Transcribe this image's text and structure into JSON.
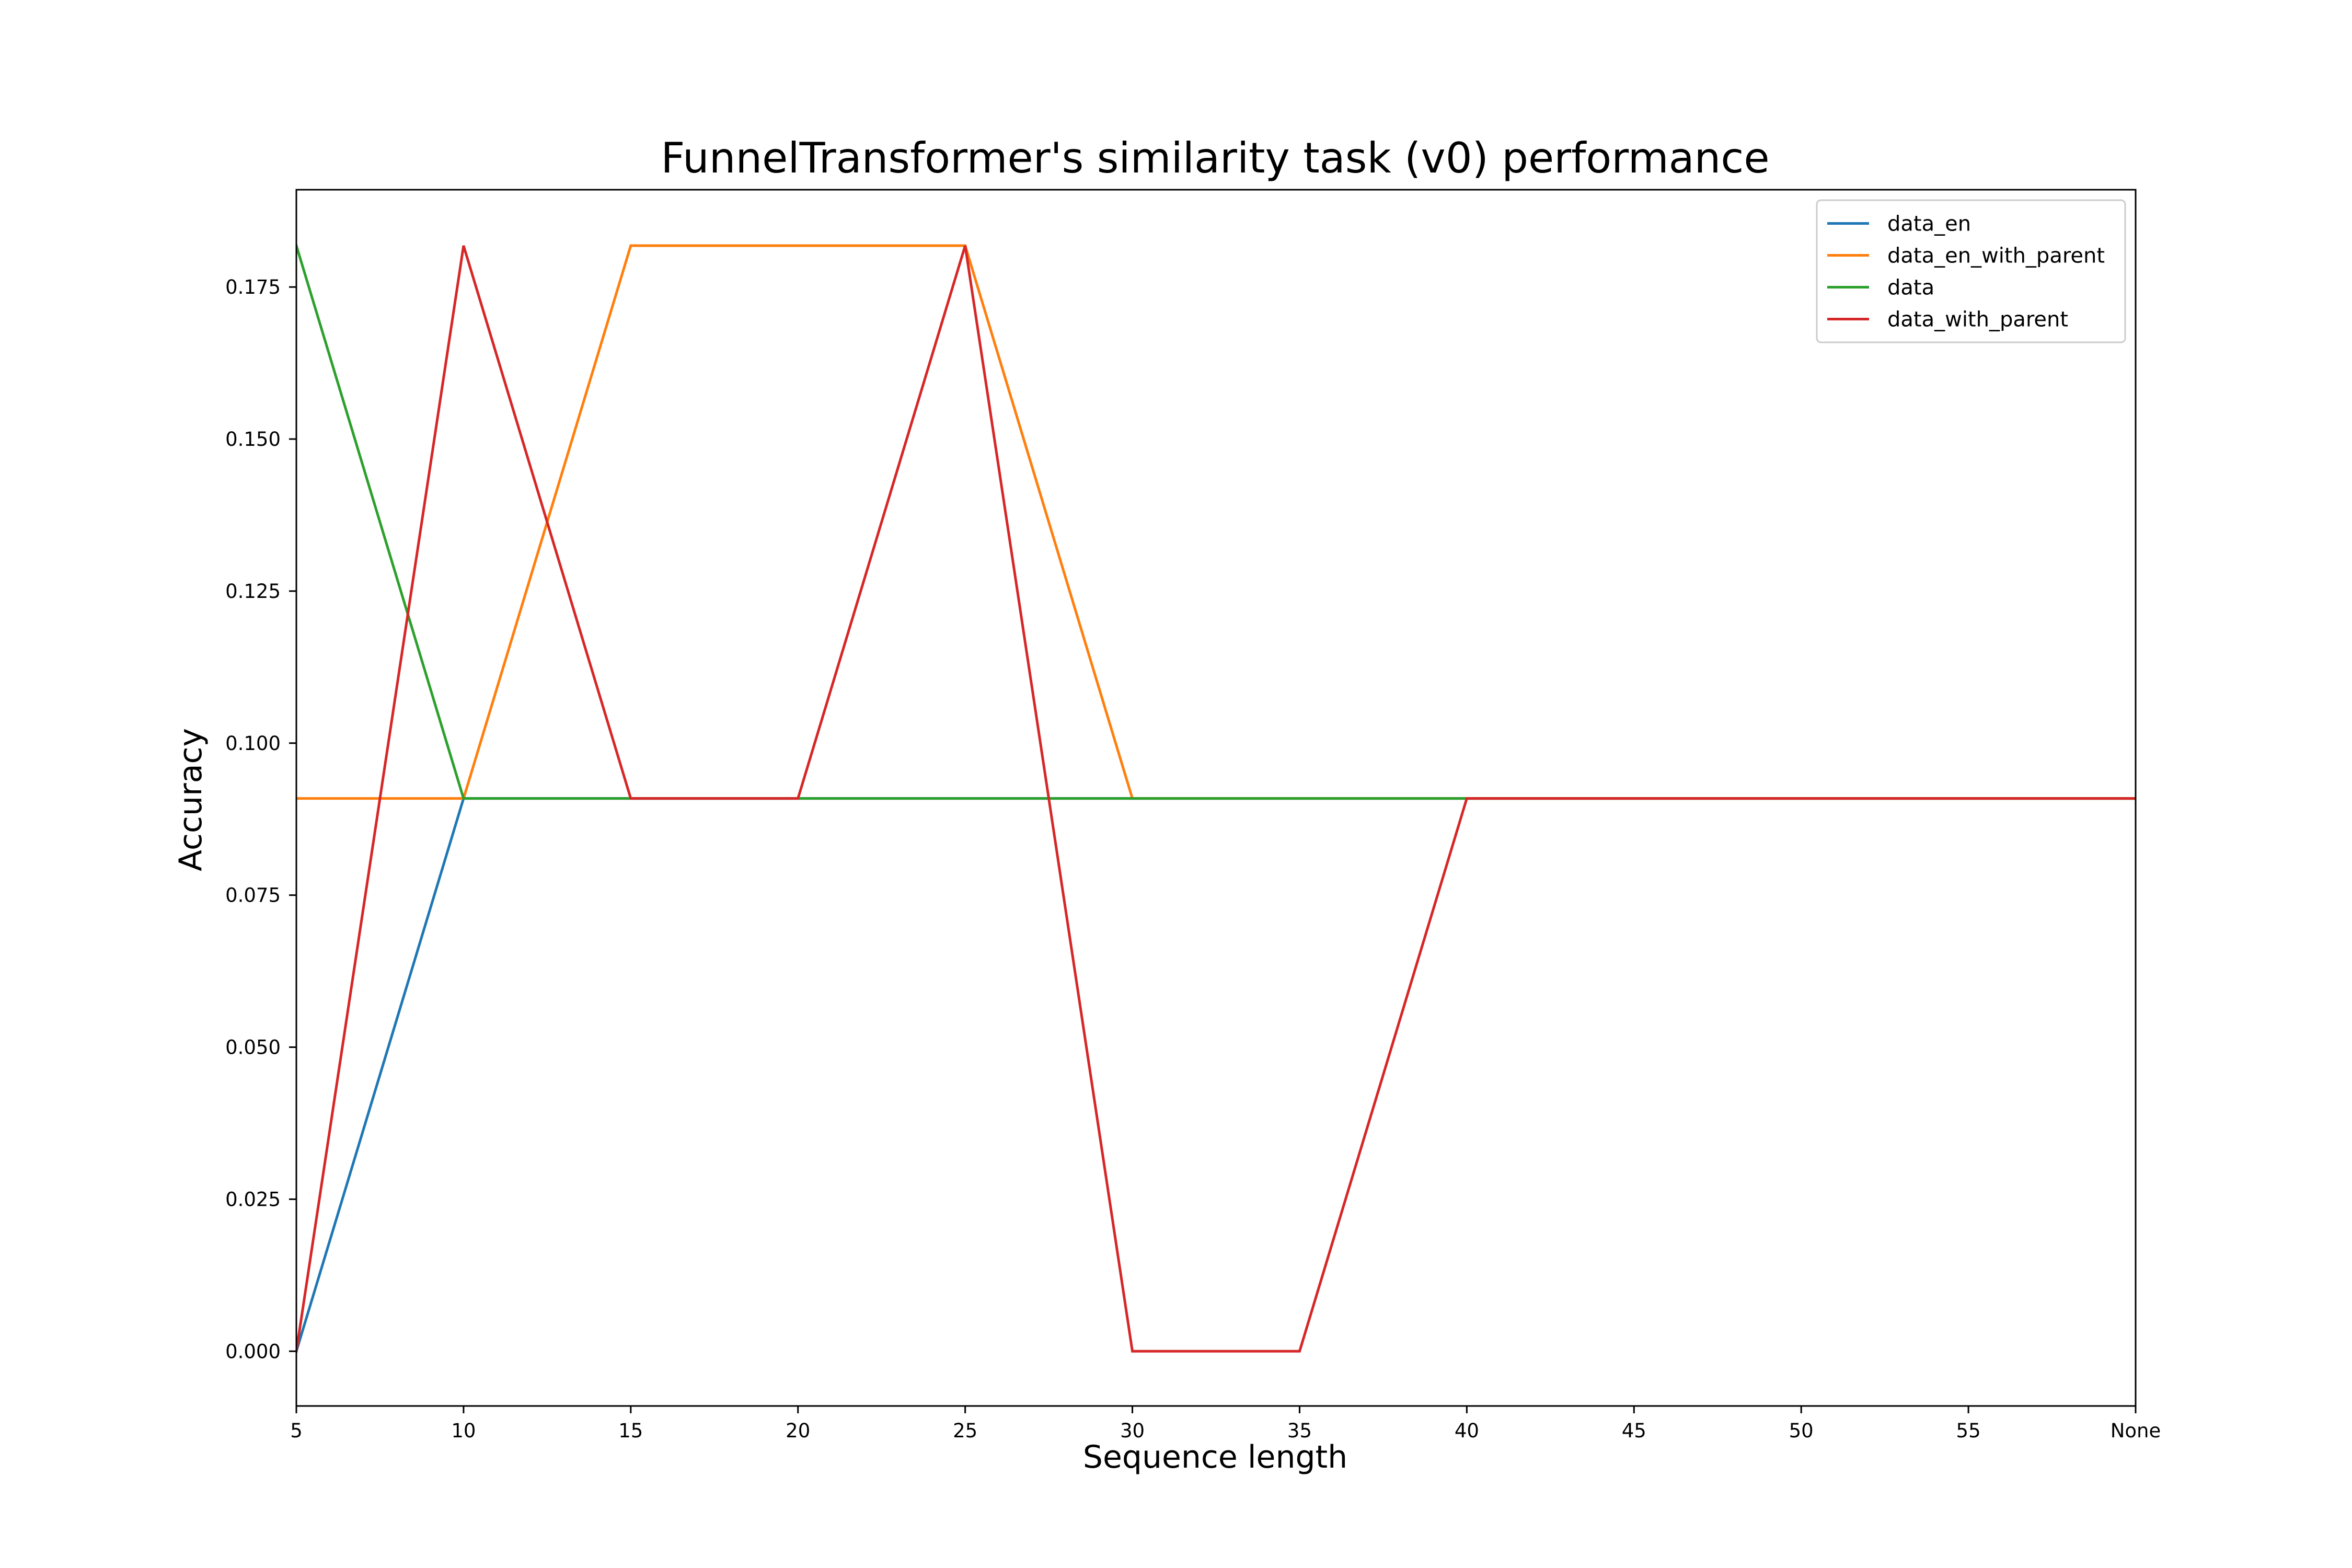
{
  "chart_data": {
    "type": "line",
    "title": "FunnelTransformer's similarity task (v0) performance",
    "xlabel": "Sequence length",
    "ylabel": "Accuracy",
    "categories": [
      "5",
      "10",
      "15",
      "20",
      "25",
      "30",
      "35",
      "40",
      "45",
      "50",
      "55",
      "None"
    ],
    "ylim": [
      -0.009,
      0.191
    ],
    "yticks": [
      "0.000",
      "0.025",
      "0.050",
      "0.075",
      "0.100",
      "0.125",
      "0.150",
      "0.175"
    ],
    "ytick_values": [
      0.0,
      0.025,
      0.05,
      0.075,
      0.1,
      0.125,
      0.15,
      0.175
    ],
    "grid": false,
    "legend_position": "top-right",
    "series": [
      {
        "name": "data_en",
        "color": "#1f77b4",
        "values": [
          0.0,
          0.0909,
          0.0909,
          0.0909,
          0.0909,
          0.0909,
          0.0909,
          0.0909,
          0.0909,
          0.0909,
          0.0909,
          0.0909
        ]
      },
      {
        "name": "data_en_with_parent",
        "color": "#ff7f0e",
        "values": [
          0.0909,
          0.0909,
          0.1818,
          0.1818,
          0.1818,
          0.0909,
          0.0909,
          0.0909,
          0.0909,
          0.0909,
          0.0909,
          0.0909
        ]
      },
      {
        "name": "data",
        "color": "#2ca02c",
        "values": [
          0.1818,
          0.0909,
          0.0909,
          0.0909,
          0.0909,
          0.0909,
          0.0909,
          0.0909,
          0.0909,
          0.0909,
          0.0909,
          0.0909
        ]
      },
      {
        "name": "data_with_parent",
        "color": "#d62728",
        "values": [
          0.0,
          0.1818,
          0.0909,
          0.0909,
          0.1818,
          0.0,
          0.0,
          0.0909,
          0.0909,
          0.0909,
          0.0909,
          0.0909
        ]
      }
    ]
  }
}
